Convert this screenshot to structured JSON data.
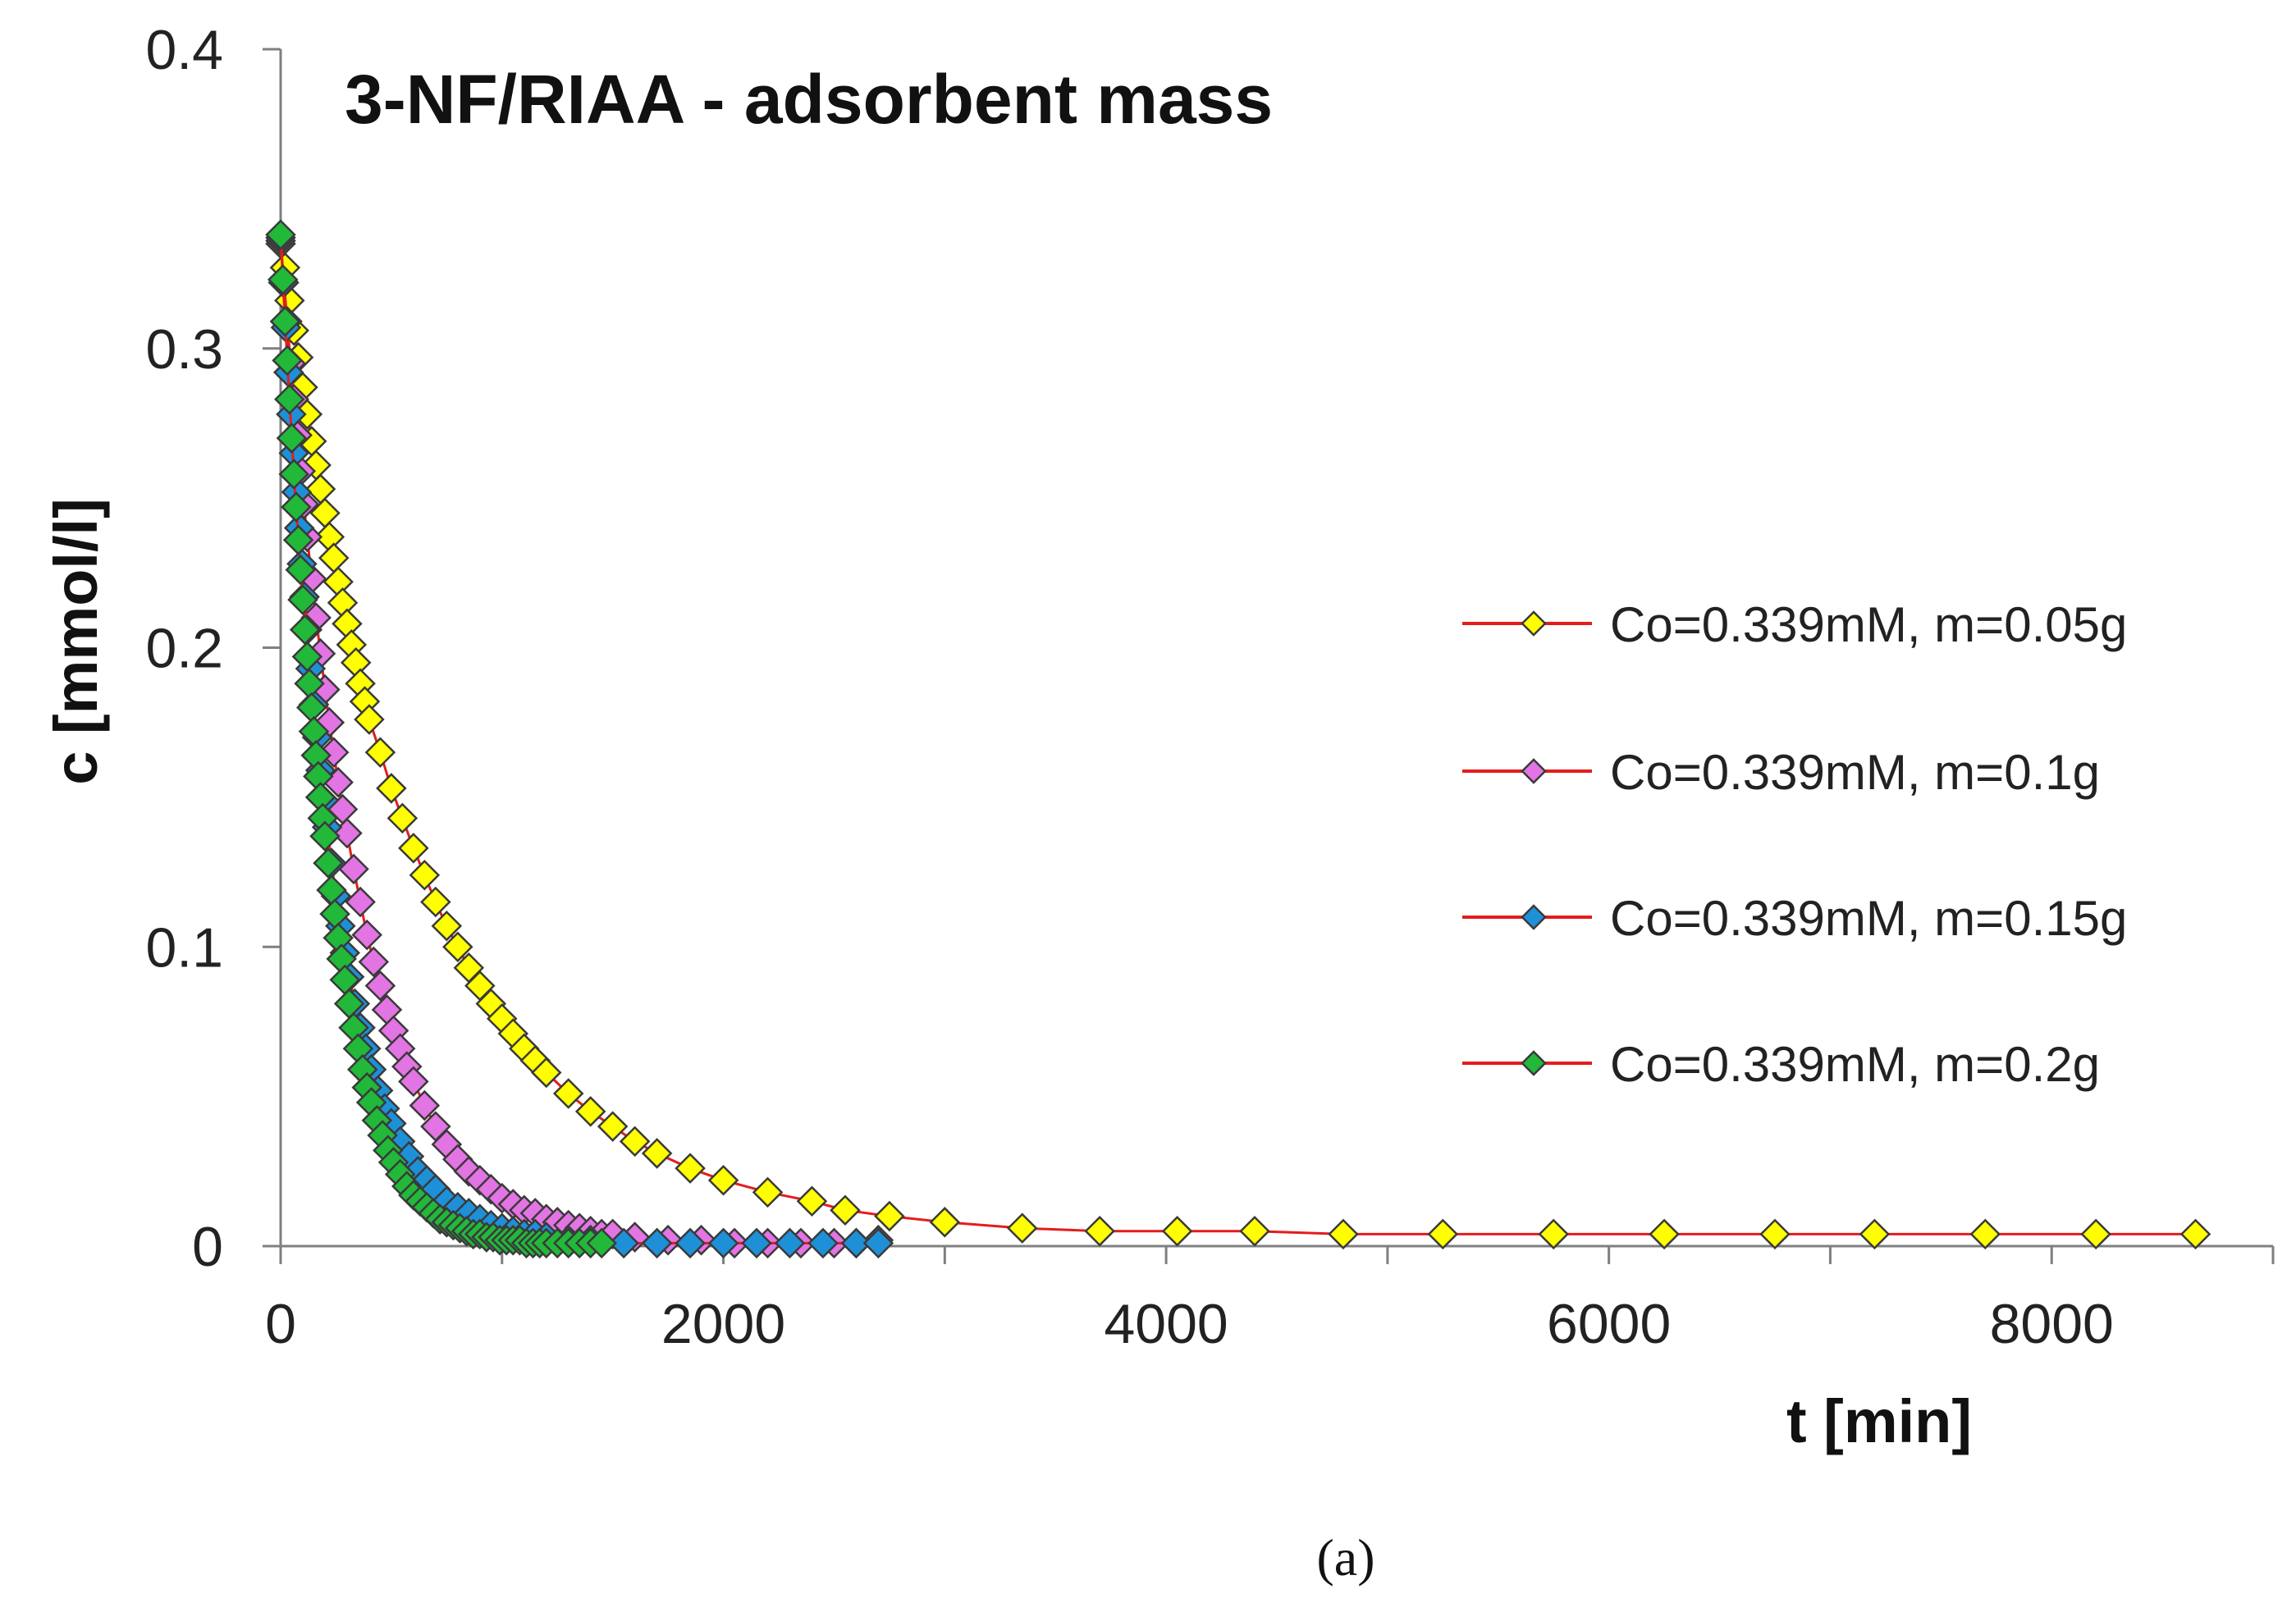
{
  "chart_data": {
    "type": "scatter",
    "title": "3-NF/RIAA - adsorbent mass",
    "xlabel": "t [min]",
    "ylabel": "c [mmol/l]",
    "xlim": [
      0,
      9000
    ],
    "ylim": [
      0,
      0.4
    ],
    "x_ticks": [
      0,
      2000,
      4000,
      6000,
      8000
    ],
    "y_ticks": [
      0,
      0.1,
      0.2,
      0.3,
      0.4
    ],
    "x_tick_labels": [
      "0",
      "2000",
      "4000",
      "6000",
      "8000"
    ],
    "y_tick_labels": [
      "0",
      "0.1",
      "0.2",
      "0.3",
      "0.4"
    ],
    "legend_position": "right-middle",
    "line_color": "#e51c1c",
    "series": [
      {
        "name": "Co=0.339mM, m=0.05g",
        "color": "#ffff00",
        "x": [
          0,
          20,
          40,
          60,
          80,
          100,
          120,
          140,
          160,
          180,
          200,
          220,
          240,
          260,
          280,
          300,
          320,
          340,
          360,
          380,
          400,
          450,
          500,
          550,
          600,
          650,
          700,
          750,
          800,
          850,
          900,
          950,
          1000,
          1050,
          1100,
          1150,
          1200,
          1300,
          1400,
          1500,
          1600,
          1700,
          1850,
          2000,
          2200,
          2400,
          2550,
          2750,
          3000,
          3350,
          3700,
          4050,
          4400,
          4800,
          5250,
          5750,
          6250,
          6750,
          7200,
          7700,
          8200,
          8650
        ],
        "y": [
          0.335,
          0.327,
          0.316,
          0.306,
          0.297,
          0.287,
          0.278,
          0.269,
          0.261,
          0.253,
          0.245,
          0.237,
          0.23,
          0.222,
          0.215,
          0.208,
          0.201,
          0.195,
          0.188,
          0.182,
          0.176,
          0.165,
          0.153,
          0.143,
          0.133,
          0.124,
          0.115,
          0.107,
          0.1,
          0.093,
          0.087,
          0.081,
          0.076,
          0.071,
          0.066,
          0.062,
          0.058,
          0.051,
          0.045,
          0.04,
          0.035,
          0.031,
          0.026,
          0.022,
          0.018,
          0.015,
          0.012,
          0.01,
          0.008,
          0.006,
          0.005,
          0.005,
          0.005,
          0.004,
          0.004,
          0.004,
          0.004,
          0.004,
          0.004,
          0.004,
          0.004,
          0.004
        ]
      },
      {
        "name": "Co=0.339mM, m=0.1g",
        "color": "#e374e3",
        "x": [
          0,
          15,
          30,
          45,
          60,
          75,
          90,
          105,
          120,
          140,
          160,
          180,
          200,
          220,
          240,
          260,
          280,
          300,
          330,
          360,
          390,
          420,
          450,
          480,
          510,
          540,
          570,
          600,
          650,
          700,
          750,
          800,
          850,
          900,
          950,
          1000,
          1050,
          1100,
          1150,
          1200,
          1250,
          1300,
          1350,
          1400,
          1450,
          1500,
          1600,
          1750,
          1900,
          2050,
          2200,
          2350,
          2500,
          2600,
          2700
        ],
        "y": [
          0.336,
          0.322,
          0.309,
          0.295,
          0.283,
          0.271,
          0.259,
          0.248,
          0.237,
          0.223,
          0.21,
          0.198,
          0.186,
          0.175,
          0.165,
          0.155,
          0.146,
          0.138,
          0.126,
          0.115,
          0.104,
          0.095,
          0.087,
          0.079,
          0.072,
          0.066,
          0.06,
          0.055,
          0.047,
          0.04,
          0.034,
          0.029,
          0.025,
          0.022,
          0.019,
          0.016,
          0.014,
          0.012,
          0.011,
          0.009,
          0.008,
          0.007,
          0.006,
          0.005,
          0.004,
          0.004,
          0.003,
          0.002,
          0.002,
          0.001,
          0.001,
          0.001,
          0.001,
          0.001,
          0.002
        ]
      },
      {
        "name": "Co=0.339mM, m=0.15g",
        "color": "#1e90d8",
        "x": [
          0,
          12,
          24,
          36,
          48,
          60,
          72,
          84,
          96,
          108,
          120,
          135,
          150,
          165,
          180,
          195,
          210,
          230,
          250,
          270,
          290,
          310,
          335,
          360,
          385,
          410,
          440,
          470,
          500,
          540,
          580,
          620,
          660,
          700,
          750,
          800,
          850,
          900,
          950,
          1000,
          1050,
          1100,
          1150,
          1200,
          1300,
          1400,
          1550,
          1700,
          1850,
          2000,
          2150,
          2300,
          2450,
          2600,
          2700
        ],
        "y": [
          0.337,
          0.322,
          0.307,
          0.292,
          0.278,
          0.265,
          0.252,
          0.24,
          0.228,
          0.217,
          0.206,
          0.193,
          0.181,
          0.17,
          0.159,
          0.149,
          0.14,
          0.128,
          0.117,
          0.107,
          0.098,
          0.09,
          0.081,
          0.073,
          0.066,
          0.059,
          0.052,
          0.046,
          0.041,
          0.035,
          0.03,
          0.025,
          0.022,
          0.019,
          0.015,
          0.013,
          0.011,
          0.009,
          0.007,
          0.006,
          0.005,
          0.004,
          0.004,
          0.003,
          0.002,
          0.002,
          0.001,
          0.001,
          0.001,
          0.001,
          0.001,
          0.001,
          0.001,
          0.001,
          0.001
        ]
      },
      {
        "name": "Co=0.339mM, m=0.2g",
        "color": "#22b83a",
        "x": [
          0,
          10,
          20,
          30,
          40,
          50,
          60,
          70,
          80,
          90,
          100,
          110,
          120,
          130,
          140,
          150,
          160,
          170,
          180,
          190,
          200,
          215,
          230,
          245,
          260,
          275,
          290,
          310,
          330,
          350,
          370,
          390,
          410,
          435,
          460,
          485,
          510,
          540,
          570,
          600,
          630,
          660,
          690,
          720,
          750,
          780,
          810,
          840,
          870,
          900,
          930,
          960,
          990,
          1020,
          1050,
          1080,
          1110,
          1140,
          1170,
          1200,
          1250,
          1300,
          1350,
          1400,
          1450
        ],
        "y": [
          0.338,
          0.323,
          0.309,
          0.296,
          0.283,
          0.27,
          0.258,
          0.247,
          0.236,
          0.226,
          0.216,
          0.206,
          0.197,
          0.188,
          0.18,
          0.172,
          0.164,
          0.157,
          0.15,
          0.143,
          0.137,
          0.128,
          0.119,
          0.111,
          0.103,
          0.096,
          0.089,
          0.081,
          0.073,
          0.066,
          0.059,
          0.053,
          0.048,
          0.042,
          0.037,
          0.032,
          0.028,
          0.024,
          0.02,
          0.017,
          0.015,
          0.013,
          0.011,
          0.009,
          0.008,
          0.007,
          0.006,
          0.005,
          0.004,
          0.004,
          0.003,
          0.003,
          0.002,
          0.002,
          0.002,
          0.002,
          0.001,
          0.001,
          0.001,
          0.001,
          0.001,
          0.001,
          0.001,
          0.001,
          0.001
        ]
      }
    ]
  },
  "caption": "(a)"
}
